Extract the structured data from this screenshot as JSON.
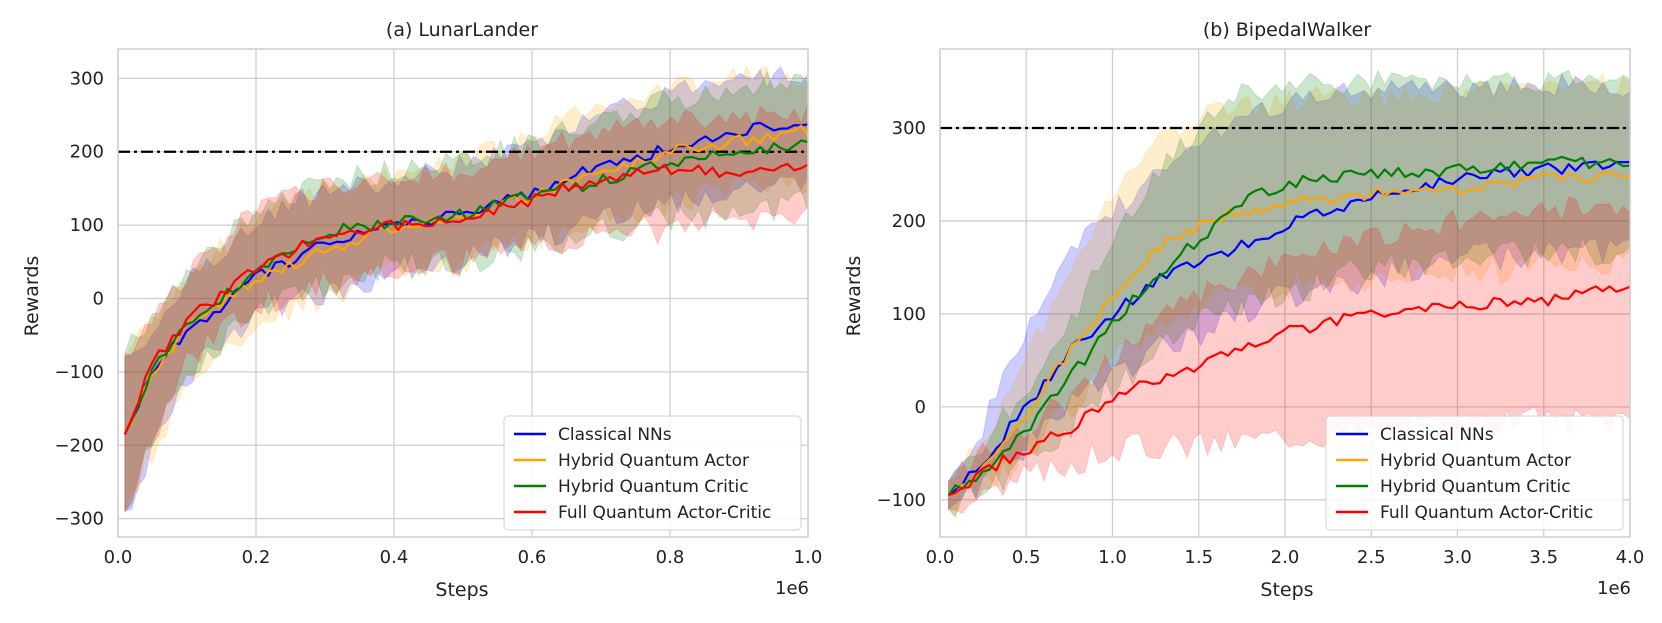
{
  "chart_data": [
    {
      "type": "line",
      "title": "(a) LunarLander",
      "xlabel": "Steps",
      "ylabel": "Rewards",
      "x_multiplier": "1e6",
      "xlim": [
        0,
        1.0
      ],
      "ylim": [
        -325,
        340
      ],
      "xticks": [
        0.0,
        0.2,
        0.4,
        0.6,
        0.8,
        1.0
      ],
      "xtick_labels": [
        "0.0",
        "0.2",
        "0.4",
        "0.6",
        "0.8",
        "1.0"
      ],
      "yticks": [
        -300,
        -200,
        -100,
        0,
        100,
        200,
        300
      ],
      "ytick_labels": [
        "−300",
        "−200",
        "−100",
        "0",
        "100",
        "200",
        "300"
      ],
      "threshold": 200,
      "legend_position": "bottom-right",
      "series": [
        {
          "name": "Classical NNs",
          "color": "#0000ff",
          "x": [
            0.01,
            0.05,
            0.1,
            0.15,
            0.2,
            0.3,
            0.4,
            0.5,
            0.6,
            0.7,
            0.8,
            0.9,
            1.0
          ],
          "mean": [
            -185,
            -100,
            -45,
            -10,
            30,
            75,
            100,
            115,
            145,
            180,
            205,
            230,
            235
          ],
          "lower": [
            -290,
            -200,
            -110,
            -60,
            -20,
            5,
            40,
            55,
            80,
            110,
            130,
            145,
            150
          ],
          "upper": [
            -80,
            -40,
            20,
            60,
            110,
            145,
            160,
            180,
            210,
            255,
            280,
            300,
            305
          ]
        },
        {
          "name": "Hybrid Quantum Actor",
          "color": "#ffa500",
          "x": [
            0.01,
            0.05,
            0.1,
            0.15,
            0.2,
            0.3,
            0.4,
            0.5,
            0.6,
            0.7,
            0.8,
            0.9,
            1.0
          ],
          "mean": [
            -185,
            -100,
            -40,
            -5,
            25,
            65,
            95,
            110,
            140,
            170,
            200,
            215,
            230
          ],
          "lower": [
            -290,
            -210,
            -110,
            -70,
            -30,
            0,
            35,
            50,
            80,
            110,
            130,
            150,
            160
          ],
          "upper": [
            -80,
            -40,
            20,
            70,
            110,
            150,
            170,
            190,
            220,
            260,
            285,
            300,
            300
          ]
        },
        {
          "name": "Hybrid Quantum Critic",
          "color": "#008000",
          "x": [
            0.01,
            0.05,
            0.1,
            0.15,
            0.2,
            0.3,
            0.4,
            0.5,
            0.6,
            0.7,
            0.8,
            0.9,
            1.0
          ],
          "mean": [
            -185,
            -95,
            -35,
            0,
            40,
            90,
            105,
            115,
            140,
            160,
            185,
            200,
            210
          ],
          "lower": [
            -290,
            -200,
            -100,
            -60,
            -15,
            20,
            45,
            50,
            70,
            90,
            110,
            120,
            130
          ],
          "upper": [
            -75,
            -30,
            30,
            75,
            125,
            160,
            175,
            190,
            210,
            245,
            270,
            290,
            300
          ]
        },
        {
          "name": "Full Quantum Actor-Critic",
          "color": "#ff0000",
          "x": [
            0.01,
            0.05,
            0.1,
            0.15,
            0.2,
            0.3,
            0.4,
            0.5,
            0.6,
            0.7,
            0.8,
            0.9,
            1.0
          ],
          "mean": [
            -185,
            -90,
            -30,
            5,
            40,
            85,
            100,
            110,
            135,
            165,
            175,
            170,
            185
          ],
          "lower": [
            -290,
            -190,
            -90,
            -50,
            -10,
            20,
            40,
            50,
            70,
            90,
            95,
            105,
            110
          ],
          "upper": [
            -75,
            -30,
            30,
            75,
            120,
            155,
            165,
            175,
            200,
            225,
            245,
            245,
            250
          ]
        }
      ]
    },
    {
      "type": "line",
      "title": "(b) BipedalWalker",
      "xlabel": "Steps",
      "ylabel": "Rewards",
      "x_multiplier": "1e6",
      "xlim": [
        0,
        4.0
      ],
      "ylim": [
        -140,
        385
      ],
      "xticks": [
        0.0,
        0.5,
        1.0,
        1.5,
        2.0,
        2.5,
        3.0,
        3.5,
        4.0
      ],
      "xtick_labels": [
        "0.0",
        "0.5",
        "1.0",
        "1.5",
        "2.0",
        "2.5",
        "3.0",
        "3.5",
        "4.0"
      ],
      "yticks": [
        -100,
        0,
        100,
        200,
        300
      ],
      "ytick_labels": [
        "−100",
        "0",
        "100",
        "200",
        "300"
      ],
      "threshold": 300,
      "legend_position": "bottom-right",
      "series": [
        {
          "name": "Classical NNs",
          "color": "#0000ff",
          "x": [
            0.05,
            0.25,
            0.5,
            0.75,
            1.0,
            1.25,
            1.5,
            1.75,
            2.0,
            2.5,
            3.0,
            3.5,
            4.0
          ],
          "mean": [
            -95,
            -60,
            0,
            60,
            100,
            135,
            155,
            175,
            195,
            225,
            245,
            255,
            260
          ],
          "lower": [
            -110,
            -80,
            -40,
            0,
            30,
            60,
            80,
            100,
            120,
            140,
            160,
            165,
            170
          ],
          "upper": [
            -80,
            -20,
            80,
            170,
            210,
            250,
            290,
            310,
            330,
            340,
            345,
            345,
            345
          ]
        },
        {
          "name": "Hybrid Quantum Actor",
          "color": "#ffa500",
          "x": [
            0.05,
            0.25,
            0.5,
            0.75,
            1.0,
            1.25,
            1.5,
            1.75,
            2.0,
            2.5,
            3.0,
            3.5,
            4.0
          ],
          "mean": [
            -95,
            -65,
            -10,
            60,
            120,
            170,
            195,
            210,
            220,
            230,
            235,
            245,
            250
          ],
          "lower": [
            -110,
            -85,
            -50,
            0,
            50,
            90,
            110,
            120,
            130,
            140,
            145,
            150,
            155
          ],
          "upper": [
            -80,
            -35,
            50,
            140,
            230,
            280,
            310,
            320,
            330,
            335,
            340,
            345,
            345
          ]
        },
        {
          "name": "Hybrid Quantum Critic",
          "color": "#008000",
          "x": [
            0.05,
            0.25,
            0.5,
            0.75,
            1.0,
            1.25,
            1.5,
            1.75,
            2.0,
            2.5,
            3.0,
            3.5,
            4.0
          ],
          "mean": [
            -95,
            -70,
            -25,
            30,
            90,
            140,
            180,
            220,
            240,
            250,
            255,
            265,
            260
          ],
          "lower": [
            -110,
            -90,
            -60,
            -20,
            20,
            60,
            90,
            110,
            120,
            150,
            160,
            165,
            170
          ],
          "upper": [
            -80,
            -40,
            20,
            90,
            180,
            250,
            300,
            335,
            345,
            350,
            350,
            350,
            350
          ]
        },
        {
          "name": "Full Quantum Actor-Critic",
          "color": "#ff0000",
          "x": [
            0.05,
            0.25,
            0.5,
            0.75,
            1.0,
            1.25,
            1.5,
            1.75,
            2.0,
            2.5,
            3.0,
            3.5,
            4.0
          ],
          "mean": [
            -95,
            -70,
            -45,
            -25,
            10,
            30,
            45,
            60,
            80,
            100,
            110,
            115,
            130
          ],
          "lower": [
            -110,
            -95,
            -75,
            -60,
            -45,
            -40,
            -40,
            -35,
            -30,
            -25,
            -20,
            -15,
            -10
          ],
          "upper": [
            -80,
            -50,
            -20,
            10,
            50,
            90,
            120,
            140,
            160,
            180,
            200,
            210,
            220
          ]
        }
      ]
    }
  ]
}
